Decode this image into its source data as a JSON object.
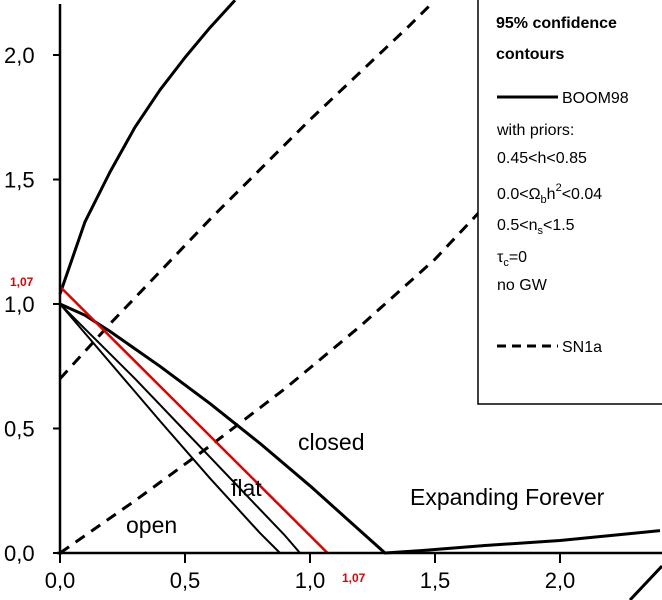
{
  "chart_data": {
    "type": "line",
    "xlim": [
      0,
      2.4
    ],
    "ylim": [
      0,
      2.2
    ],
    "x_ticks": [
      "0,0",
      "0,5",
      "1,0",
      "1,5",
      "2,0"
    ],
    "y_ticks": [
      "0,0",
      "0,5",
      "1,0",
      "1,5",
      "2,0"
    ],
    "legend": {
      "title_line1": "95% confidence",
      "title_line2": "contours",
      "solid_label": "BOOM98",
      "priors_title": "with priors:",
      "prior_h": "0.45<h<0.85",
      "prior_omega_pre": "0.0<Ω",
      "prior_omega_sub": "b",
      "prior_omega_mid": "h",
      "prior_omega_sup": "2",
      "prior_omega_post": "<0.04",
      "prior_ns_pre": "0.5<n",
      "prior_ns_sub": "s",
      "prior_ns_post": "<1.5",
      "prior_tau_pre": "τ",
      "prior_tau_sub": "c",
      "prior_tau_post": "=0",
      "prior_gw": "no GW",
      "dashed_label": "SN1a"
    },
    "regions": {
      "closed": "closed",
      "flat": "flat",
      "open": "open",
      "expanding": "Expanding Forever"
    },
    "annotations": {
      "y_mark": "1,07",
      "x_mark": "1,07"
    },
    "series": [
      {
        "style": "solid",
        "points": [
          [
            0.0,
            1.04
          ],
          [
            0.1,
            1.33
          ],
          [
            0.2,
            1.53
          ],
          [
            0.3,
            1.71
          ],
          [
            0.4,
            1.86
          ],
          [
            0.5,
            1.99
          ],
          [
            0.6,
            2.11
          ],
          [
            0.7,
            2.22
          ]
        ]
      },
      {
        "style": "solid",
        "points": [
          [
            0.0,
            1.0
          ],
          [
            0.1,
            0.9
          ],
          [
            0.2,
            0.8
          ],
          [
            0.3,
            0.7
          ],
          [
            0.4,
            0.595
          ],
          [
            0.5,
            0.49
          ],
          [
            0.6,
            0.385
          ],
          [
            0.7,
            0.28
          ],
          [
            0.8,
            0.175
          ],
          [
            0.9,
            0.07
          ],
          [
            0.96,
            0.0
          ]
        ]
      },
      {
        "style": "solid",
        "points": [
          [
            0.0,
            1.0
          ],
          [
            0.2,
            0.765
          ],
          [
            0.4,
            0.53
          ],
          [
            0.6,
            0.3
          ],
          [
            0.8,
            0.08
          ],
          [
            0.88,
            0.0
          ]
        ]
      },
      {
        "style": "solid",
        "points": [
          [
            0.0,
            1.0
          ],
          [
            0.1,
            0.955
          ],
          [
            0.2,
            0.89
          ],
          [
            0.4,
            0.75
          ],
          [
            0.6,
            0.6
          ],
          [
            0.8,
            0.44
          ],
          [
            1.0,
            0.27
          ],
          [
            1.2,
            0.09
          ],
          [
            1.3,
            0.0
          ],
          [
            1.45,
            0.01
          ],
          [
            1.7,
            0.03
          ],
          [
            2.0,
            0.05
          ],
          [
            2.3,
            0.08
          ],
          [
            2.4,
            0.09
          ]
        ]
      },
      {
        "style": "dashed",
        "points": [
          [
            0.0,
            0.7
          ],
          [
            0.2,
            0.92
          ],
          [
            0.4,
            1.13
          ],
          [
            0.6,
            1.34
          ],
          [
            0.8,
            1.54
          ],
          [
            1.0,
            1.74
          ],
          [
            1.2,
            1.93
          ],
          [
            1.4,
            2.12
          ],
          [
            1.48,
            2.2
          ]
        ]
      },
      {
        "style": "dashed",
        "points": [
          [
            0.0,
            0.0
          ],
          [
            0.3,
            0.21
          ],
          [
            0.6,
            0.43
          ],
          [
            0.9,
            0.66
          ],
          [
            1.2,
            0.91
          ],
          [
            1.5,
            1.18
          ],
          [
            1.8,
            1.5
          ],
          [
            2.0,
            1.76
          ],
          [
            2.2,
            2.07
          ],
          [
            2.28,
            2.2
          ]
        ]
      },
      {
        "style": "flat-line",
        "color": "#e00000",
        "points": [
          [
            0.0,
            1.07
          ],
          [
            1.07,
            0.0
          ]
        ]
      }
    ]
  }
}
